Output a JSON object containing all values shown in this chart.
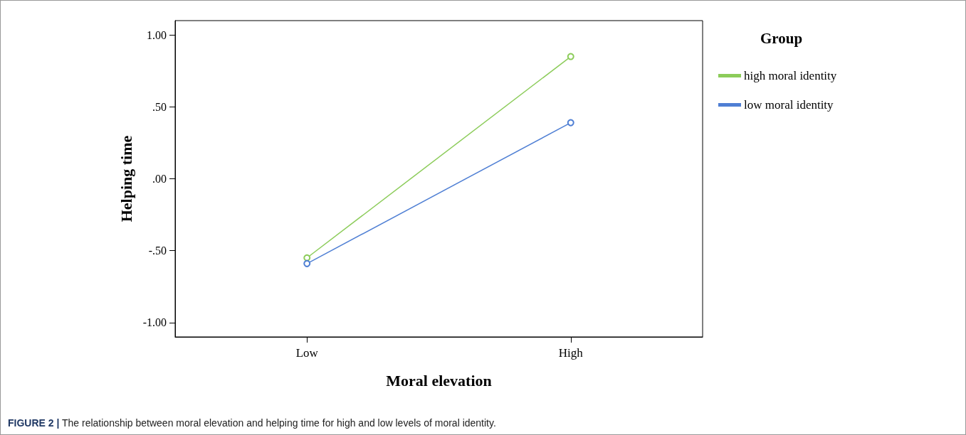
{
  "chart_data": {
    "type": "line",
    "xlabel": "Moral elevation",
    "ylabel": "Helping time",
    "legend_title": "Group",
    "categories": [
      "Low",
      "High"
    ],
    "series": [
      {
        "name": "high moral identity",
        "color": "#8ccc5a",
        "values": [
          -0.55,
          0.85
        ]
      },
      {
        "name": "low moral identity",
        "color": "#4f7fd4",
        "values": [
          -0.59,
          0.39
        ]
      }
    ],
    "ylim": [
      -1.1,
      1.1
    ],
    "yticks": [
      {
        "value": -1,
        "label": "-1.00"
      },
      {
        "value": -0.5,
        "label": "-.50"
      },
      {
        "value": 0,
        "label": ".00"
      },
      {
        "value": 0.5,
        "label": ".50"
      },
      {
        "value": 1,
        "label": "1.00"
      }
    ],
    "grid": false,
    "legend": "top right",
    "marker": "circle",
    "line_style": "solid",
    "annotations": [
      "FIGURE 2 | The relationship between moral elevation and helping time for high and low levels of moral identity."
    ]
  }
}
